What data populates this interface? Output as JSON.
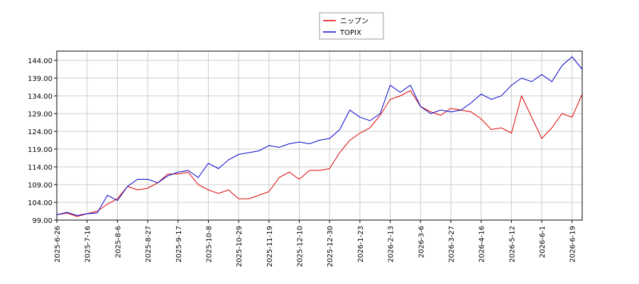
{
  "chart_data": {
    "type": "line",
    "categories": [
      "2025-6-26",
      null,
      null,
      "2025-7-16",
      null,
      null,
      "2025-8-6",
      null,
      null,
      "2025-8-27",
      null,
      null,
      "2025-9-17",
      null,
      null,
      "2025-10-8",
      null,
      null,
      "2025-10-29",
      null,
      null,
      "2025-11-19",
      null,
      null,
      "2025-12-10",
      null,
      null,
      "2025-12-30",
      null,
      null,
      "2026-1-23",
      null,
      null,
      "2026-2-13",
      null,
      null,
      "2026-3-6",
      null,
      null,
      "2026-3-27",
      null,
      null,
      "2026-4-16",
      null,
      null,
      "2026-5-12",
      null,
      null,
      "2026-6-1",
      null,
      null,
      "2026-6-19",
      null
    ],
    "series": [
      {
        "name": "ニップン",
        "color": "#dd0000",
        "values": [
          100.5,
          101,
          100,
          100.8,
          101.5,
          103.5,
          105,
          108.5,
          107.5,
          108,
          109.5,
          112,
          112,
          112.5,
          109,
          107.5,
          106.5,
          107.5,
          105,
          105,
          106,
          107,
          111,
          112.5,
          110.5,
          113,
          113,
          113.5,
          118,
          121.5,
          123.5,
          125,
          128.5,
          133,
          134,
          135.5,
          131,
          129.5,
          128.5,
          130.5,
          130,
          129.5,
          127.5,
          124.5,
          125,
          123.5,
          134,
          128,
          122,
          125,
          129,
          128,
          134.5
        ]
      },
      {
        "name": "TOPIX",
        "color": "#0000cc",
        "values": [
          100.5,
          101.2,
          100.3,
          100.8,
          101,
          106,
          104.5,
          108.5,
          110.5,
          110.5,
          109.5,
          111.5,
          112.5,
          113,
          111,
          115,
          113.5,
          116,
          117.5,
          118,
          118.5,
          120,
          119.5,
          120.5,
          121,
          120.5,
          121.5,
          122,
          124.5,
          130,
          128,
          127,
          129,
          137,
          135,
          137,
          131,
          129,
          130,
          129.5,
          130,
          132,
          134.5,
          133,
          134,
          137,
          139,
          138,
          140,
          138,
          142.5,
          145,
          141.5
        ]
      }
    ],
    "ylim": [
      99,
      146.6
    ],
    "yticks": [
      {
        "value": 99,
        "label": "99.00"
      },
      {
        "value": 104,
        "label": "104.00"
      },
      {
        "value": 109,
        "label": "109.00"
      },
      {
        "value": 114,
        "label": "114.00"
      },
      {
        "value": 119,
        "label": "119.00"
      },
      {
        "value": 124,
        "label": "124.00"
      },
      {
        "value": 129,
        "label": "129.00"
      },
      {
        "value": 134,
        "label": "134.00"
      },
      {
        "value": 139,
        "label": "139.00"
      },
      {
        "value": 144,
        "label": "144.00"
      }
    ],
    "grid": true
  }
}
